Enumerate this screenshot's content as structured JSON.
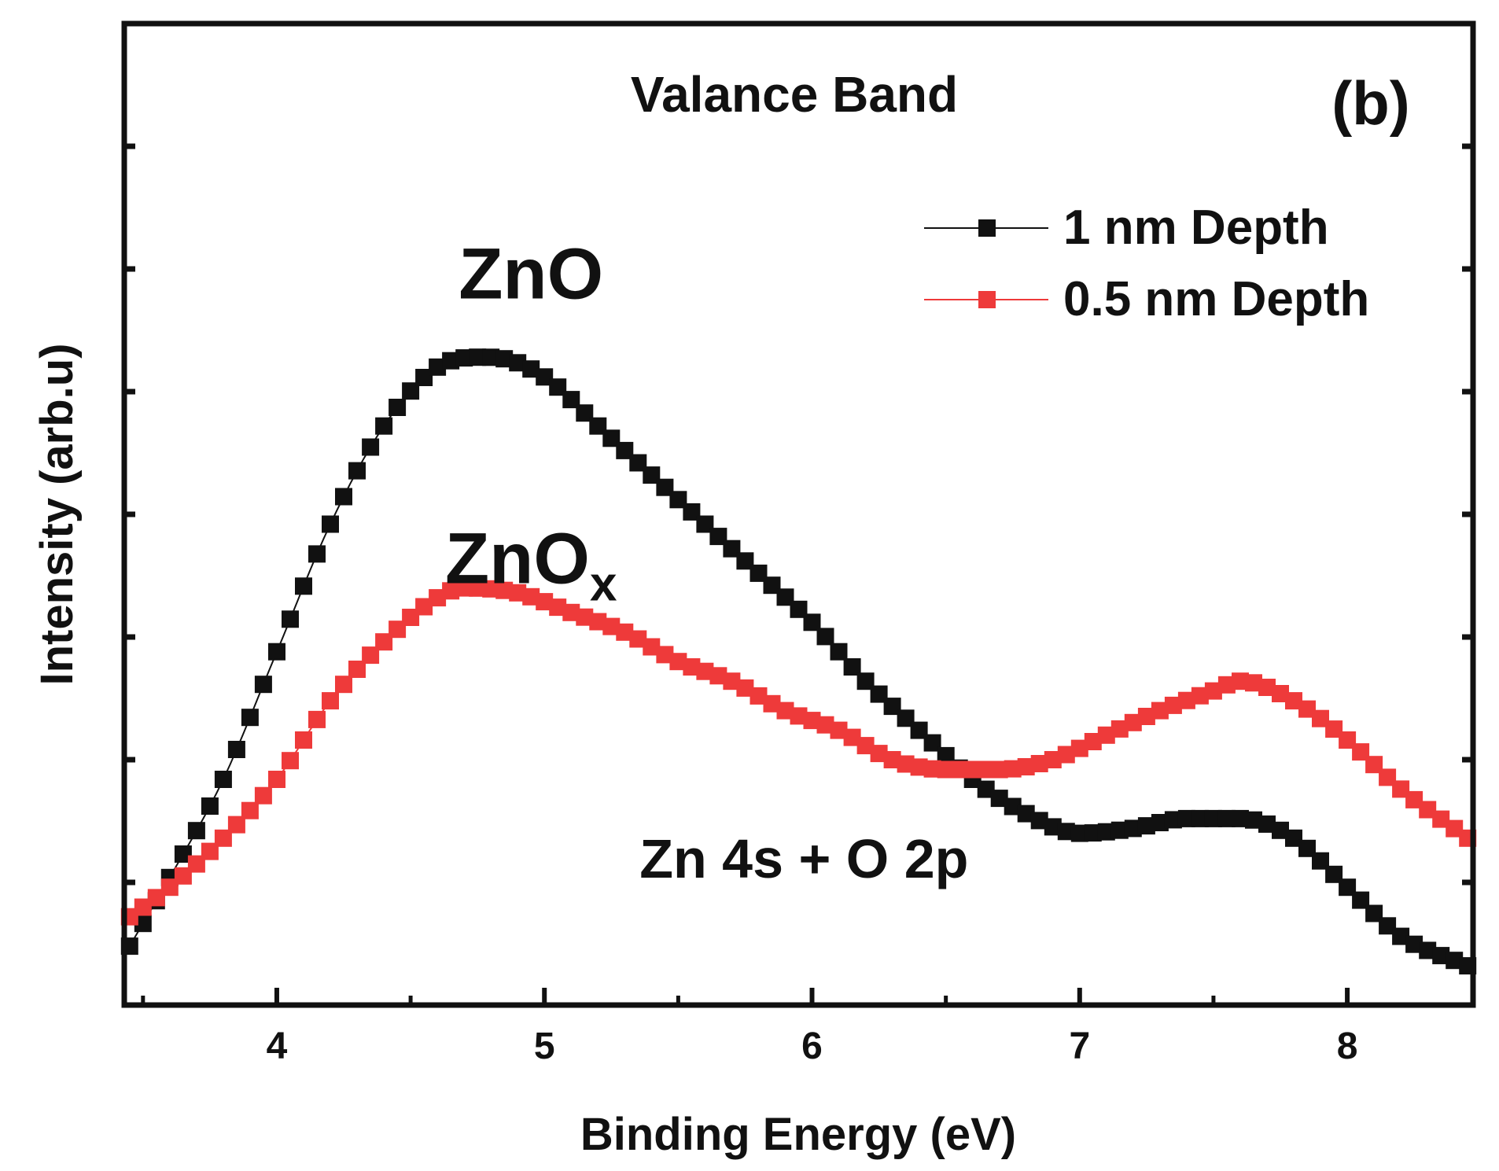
{
  "chart_data": {
    "type": "scatter",
    "title": "Valance Band",
    "panel_label": "(b)",
    "xlabel": "Binding Energy (eV)",
    "ylabel": "Intensity (arb.u)",
    "xlim": [
      3.43,
      8.47
    ],
    "ylim": [
      0,
      100
    ],
    "x_ticks": [
      4,
      5,
      6,
      7,
      8
    ],
    "x_tick_labels": [
      "4",
      "5",
      "6",
      "7",
      "8"
    ],
    "y_tick_labels_shown": false,
    "grid": false,
    "legend_position": "top-right",
    "annotations": [
      {
        "text": "ZnO",
        "x": 4.95,
        "y": 72
      },
      {
        "text": "ZnO",
        "subscript": "x",
        "x": 4.95,
        "y": 43
      },
      {
        "text": "Zn 4s + O 2p",
        "x": 5.97,
        "y": 13
      }
    ],
    "series": [
      {
        "name": "1 nm Depth",
        "color": "#111111",
        "marker": "square",
        "points": [
          [
            3.45,
            6
          ],
          [
            3.6,
            13
          ],
          [
            3.8,
            23
          ],
          [
            4.0,
            36
          ],
          [
            4.2,
            49
          ],
          [
            4.4,
            59
          ],
          [
            4.6,
            65
          ],
          [
            4.8,
            66
          ],
          [
            5.0,
            64
          ],
          [
            5.2,
            59
          ],
          [
            5.4,
            54
          ],
          [
            5.6,
            49
          ],
          [
            5.8,
            44
          ],
          [
            6.0,
            39
          ],
          [
            6.2,
            33
          ],
          [
            6.4,
            28
          ],
          [
            6.6,
            23
          ],
          [
            6.8,
            19.5
          ],
          [
            7.0,
            17.5
          ],
          [
            7.2,
            18
          ],
          [
            7.4,
            19
          ],
          [
            7.6,
            19
          ],
          [
            7.8,
            17
          ],
          [
            8.0,
            12
          ],
          [
            8.2,
            7
          ],
          [
            8.45,
            4
          ]
        ]
      },
      {
        "name": "0.5 nm Depth",
        "color": "#ee3a3a",
        "marker": "square",
        "points": [
          [
            3.45,
            9
          ],
          [
            3.6,
            12
          ],
          [
            3.8,
            17
          ],
          [
            4.0,
            23
          ],
          [
            4.2,
            31
          ],
          [
            4.4,
            37
          ],
          [
            4.6,
            41.5
          ],
          [
            4.7,
            42.5
          ],
          [
            4.9,
            42
          ],
          [
            5.1,
            40
          ],
          [
            5.3,
            38
          ],
          [
            5.5,
            35
          ],
          [
            5.7,
            33
          ],
          [
            5.9,
            30
          ],
          [
            6.1,
            28
          ],
          [
            6.3,
            25
          ],
          [
            6.5,
            24
          ],
          [
            6.7,
            24
          ],
          [
            6.9,
            25
          ],
          [
            7.1,
            27.5
          ],
          [
            7.3,
            30
          ],
          [
            7.5,
            32
          ],
          [
            7.6,
            33
          ],
          [
            7.8,
            31
          ],
          [
            8.0,
            27
          ],
          [
            8.2,
            22
          ],
          [
            8.45,
            17
          ]
        ]
      }
    ]
  }
}
